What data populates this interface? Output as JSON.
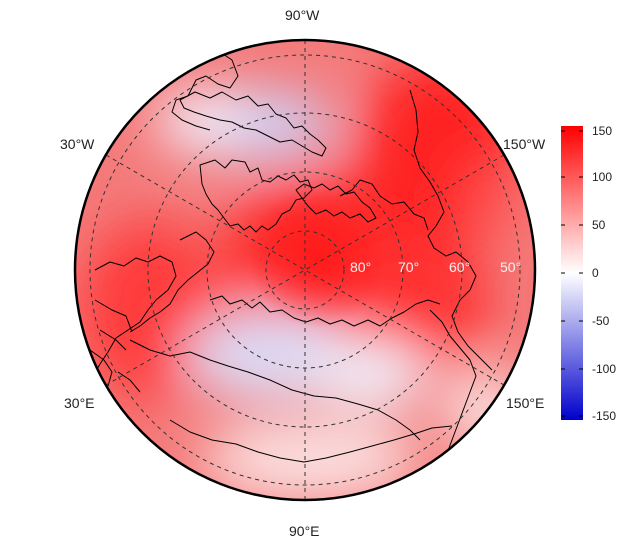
{
  "map": {
    "projection": "north-polar-stereographic",
    "longitude_labels": [
      "90°W",
      "30°W",
      "150°W",
      "30°E",
      "150°E",
      "90°E"
    ],
    "latitude_labels": [
      "80°",
      "70°",
      "60°",
      "50°"
    ],
    "latitude_label_color": "#f2f2f2"
  },
  "colorbar": {
    "range": [
      -160,
      160
    ],
    "ticks": [
      "150",
      "100",
      "50",
      "0",
      "-50",
      "-100",
      "-150"
    ],
    "colors": {
      "low": "#0000cc",
      "mid": "#ffffff",
      "high": "#ff0000"
    }
  }
}
